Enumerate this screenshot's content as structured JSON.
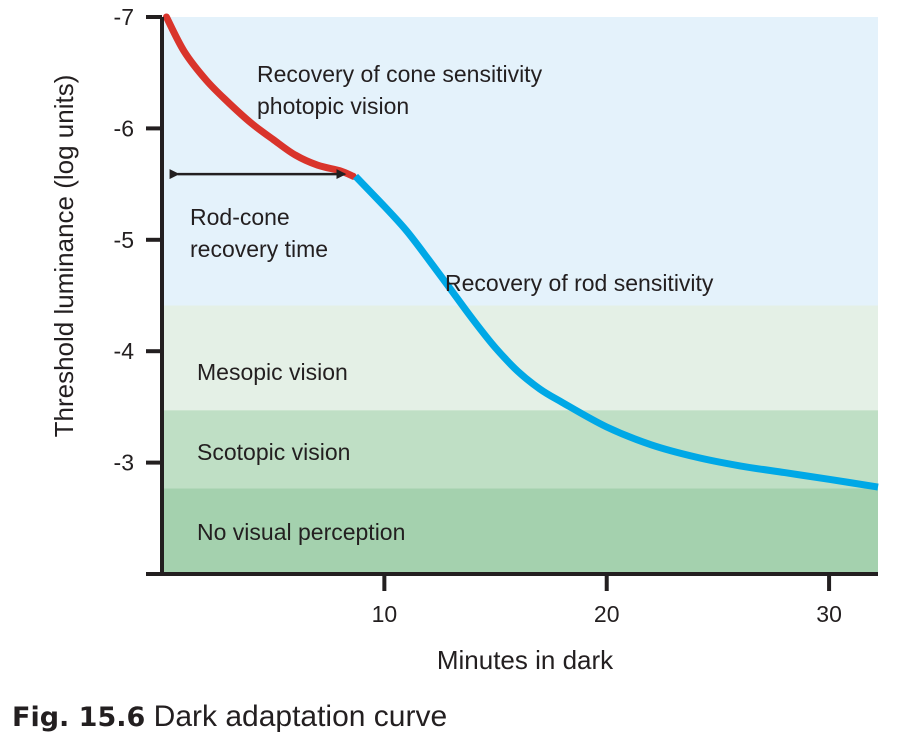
{
  "caption": {
    "figure_number": "Fig. 15.6",
    "title": "Dark adaptation curve"
  },
  "chart_data": {
    "type": "line",
    "xlabel": "Minutes in dark",
    "ylabel": "Threshold luminance (log units)",
    "x_ticks": [
      10,
      20,
      30
    ],
    "y_ticks": [
      -7,
      -6,
      -5,
      -4,
      -3
    ],
    "xlim": [
      0,
      32.2
    ],
    "ylim": [
      -2,
      -7
    ],
    "grid": false,
    "zones": [
      {
        "label": "Recovery of cone sensitivity",
        "label2": "photopic vision",
        "from": -7,
        "to": -4.41,
        "color": "#e4f2fb"
      },
      {
        "label": "Mesopic vision",
        "from": -4.41,
        "to": -3.47,
        "color": "#e4f0e6"
      },
      {
        "label": "Scotopic vision",
        "from": -3.47,
        "to": -2.77,
        "color": "#bfdfc5"
      },
      {
        "label": "No visual perception",
        "from": -2.77,
        "to": -2.0,
        "color": "#a4d1ae"
      }
    ],
    "series": [
      {
        "name": "Recovery of cone sensitivity",
        "color": "#d9342b",
        "x": [
          0.2,
          1.0,
          2.0,
          3.0,
          4.0,
          5.0,
          6.0,
          7.0,
          8.0,
          8.6
        ],
        "y": [
          -7.0,
          -6.69,
          -6.43,
          -6.23,
          -6.05,
          -5.9,
          -5.76,
          -5.67,
          -5.62,
          -5.57
        ]
      },
      {
        "name": "Recovery of rod sensitivity",
        "color": "#00a8e6",
        "x": [
          8.7,
          10,
          11,
          12,
          13,
          14,
          15,
          16,
          17,
          18,
          20,
          22,
          24,
          26,
          28,
          30,
          32.2
        ],
        "y": [
          -5.57,
          -5.3,
          -5.08,
          -4.82,
          -4.55,
          -4.28,
          -4.03,
          -3.82,
          -3.66,
          -3.54,
          -3.32,
          -3.16,
          -3.05,
          -2.97,
          -2.91,
          -2.85,
          -2.78
        ]
      }
    ],
    "annotations": {
      "rod_cone_arrow": {
        "x_from": 0.7,
        "x_to": 8.2,
        "y": -5.59
      },
      "rod_cone_label": [
        "Rod-cone",
        "recovery time"
      ]
    }
  }
}
